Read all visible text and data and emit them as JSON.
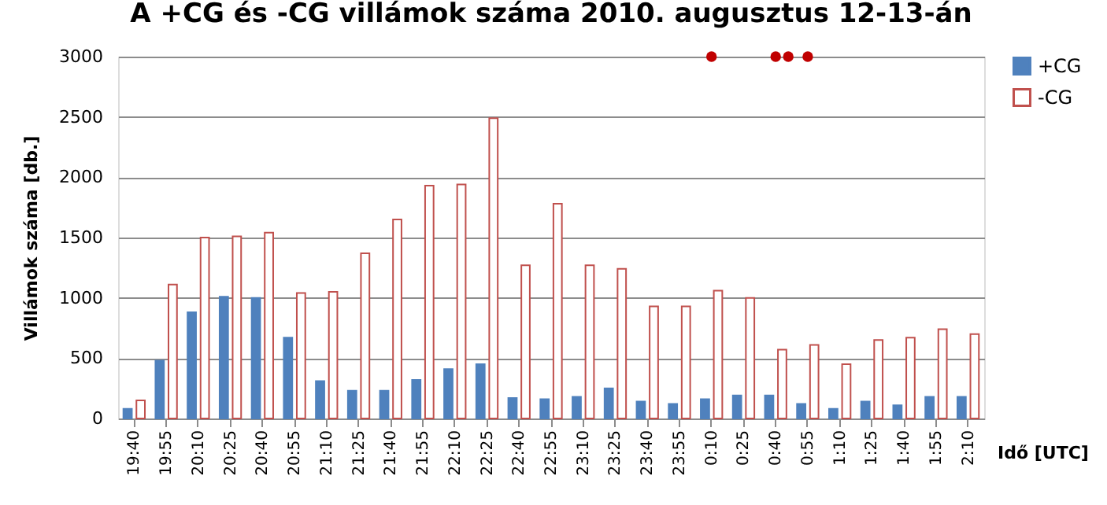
{
  "chart_data": {
    "type": "bar",
    "title": "A +CG és -CG villámok száma 2010. augusztus 12-13-án",
    "xlabel": "Idő [UTC]",
    "ylabel": "Villámok száma [db.]",
    "categories": [
      "19:40",
      "19:55",
      "20:10",
      "20:25",
      "20:40",
      "20:55",
      "21:10",
      "21:25",
      "21:40",
      "21:55",
      "22:10",
      "22:25",
      "22:40",
      "22:55",
      "23:10",
      "23:25",
      "23:40",
      "23:55",
      "0:10",
      "0:25",
      "0:40",
      "0:55",
      "1:10",
      "1:25",
      "1:40",
      "1:55",
      "2:10"
    ],
    "series": [
      {
        "name": "+CG",
        "color": "#4f81bd",
        "values": [
          80,
          480,
          880,
          1010,
          1000,
          670,
          310,
          230,
          230,
          320,
          410,
          450,
          170,
          160,
          180,
          250,
          140,
          120,
          160,
          190,
          190,
          120,
          80,
          140,
          110,
          180,
          180
        ]
      },
      {
        "name": "-CG",
        "color": "#c0504d",
        "values": [
          150,
          1110,
          1500,
          1510,
          1540,
          1040,
          1050,
          1370,
          1650,
          1930,
          1940,
          2490,
          1270,
          1780,
          1270,
          1240,
          930,
          930,
          1060,
          1000,
          570,
          610,
          450,
          650,
          670,
          740,
          700
        ]
      },
      {
        "type": "scatter",
        "color": "#c00000",
        "x": [
          "0:10",
          "0:40",
          "0:40",
          "0:55"
        ],
        "values": [
          3000,
          3000,
          3000,
          3000
        ]
      }
    ],
    "ylim": [
      0,
      3000
    ],
    "yticks": [
      0,
      500,
      1000,
      1500,
      2000,
      2500,
      3000
    ],
    "grid": "y",
    "legend": "right",
    "marker": "circle"
  }
}
